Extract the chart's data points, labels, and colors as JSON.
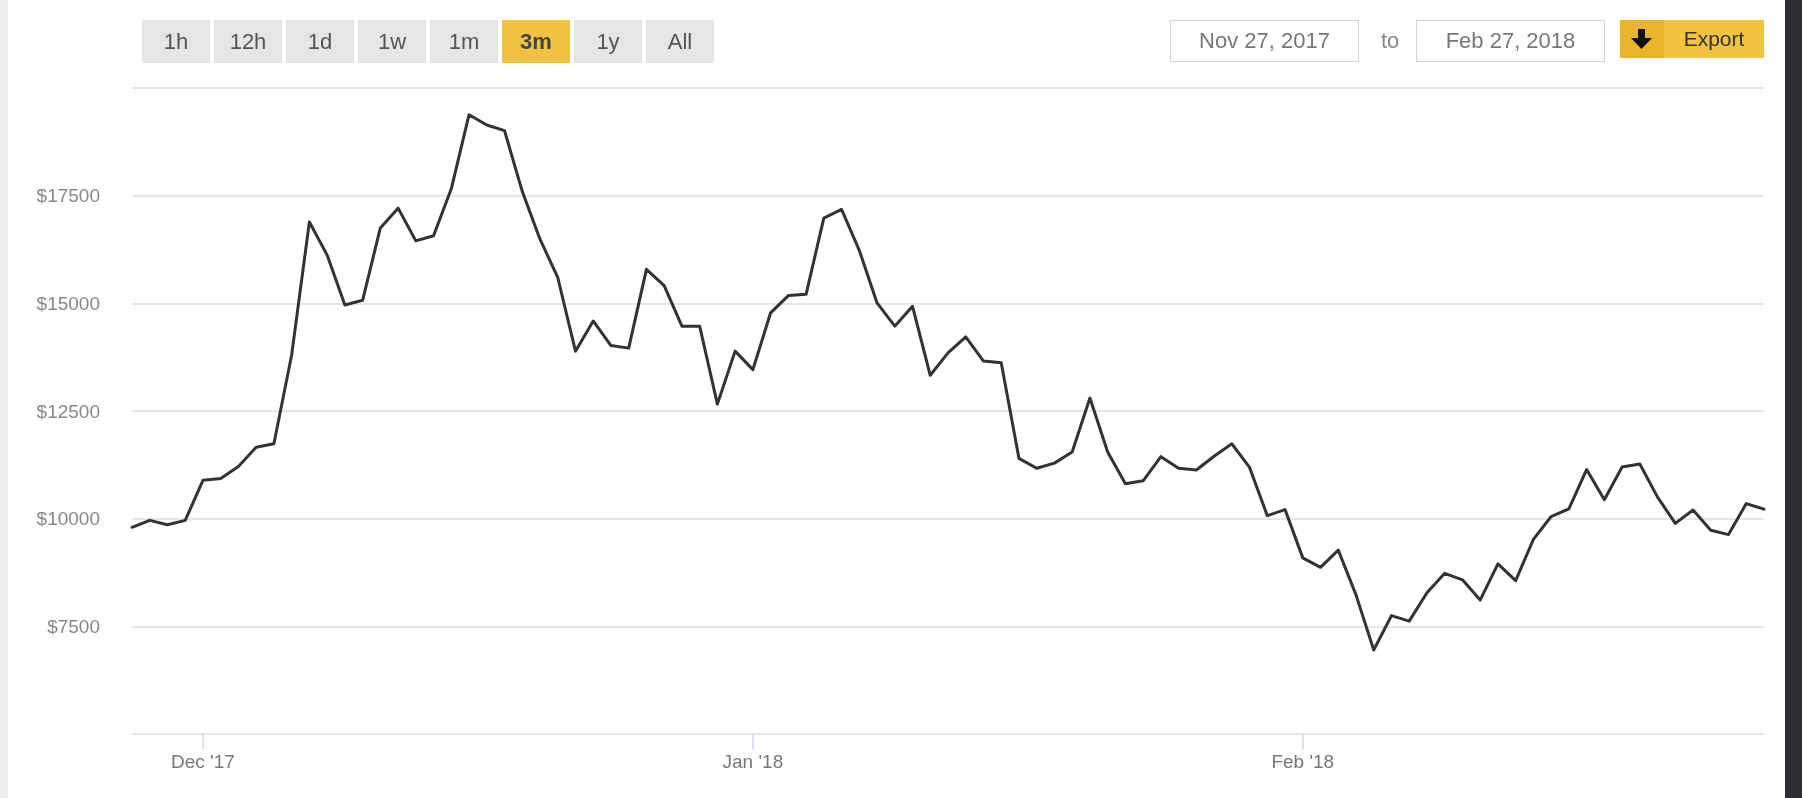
{
  "chart_data": {
    "type": "line",
    "color": "#333333",
    "marker": "none",
    "grid": "y",
    "xlim": [
      "2017-11-27",
      "2018-02-27"
    ],
    "xticks": [
      {
        "value": "2017-12-01",
        "label": "Dec '17"
      },
      {
        "value": "2018-01-01",
        "label": "Jan '18"
      },
      {
        "value": "2018-02-01",
        "label": "Feb '18"
      }
    ],
    "ylim": [
      5000,
      20000
    ],
    "yticks": [
      {
        "value": 7500,
        "label": "$7500"
      },
      {
        "value": 10000,
        "label": "$10000"
      },
      {
        "value": 12500,
        "label": "$12500"
      },
      {
        "value": 15000,
        "label": "$15000"
      },
      {
        "value": 17500,
        "label": "$17500"
      },
      {
        "value": 20000,
        "label": null
      }
    ],
    "annotations": [
      "1h",
      "12h",
      "1d",
      "1w",
      "1m",
      "3m",
      "1y",
      "All",
      "Nov 27, 2017",
      "to",
      "Feb 27, 2018",
      "Export"
    ],
    "x": [
      "2017-11-27",
      "2017-11-28",
      "2017-11-29",
      "2017-11-30",
      "2017-12-01",
      "2017-12-02",
      "2017-12-03",
      "2017-12-04",
      "2017-12-05",
      "2017-12-06",
      "2017-12-07",
      "2017-12-08",
      "2017-12-09",
      "2017-12-10",
      "2017-12-11",
      "2017-12-12",
      "2017-12-13",
      "2017-12-14",
      "2017-12-15",
      "2017-12-16",
      "2017-12-17",
      "2017-12-18",
      "2017-12-19",
      "2017-12-20",
      "2017-12-21",
      "2017-12-22",
      "2017-12-23",
      "2017-12-24",
      "2017-12-25",
      "2017-12-26",
      "2017-12-27",
      "2017-12-28",
      "2017-12-29",
      "2017-12-30",
      "2017-12-31",
      "2018-01-01",
      "2018-01-02",
      "2018-01-03",
      "2018-01-04",
      "2018-01-05",
      "2018-01-06",
      "2018-01-07",
      "2018-01-08",
      "2018-01-09",
      "2018-01-10",
      "2018-01-11",
      "2018-01-12",
      "2018-01-13",
      "2018-01-14",
      "2018-01-15",
      "2018-01-16",
      "2018-01-17",
      "2018-01-18",
      "2018-01-19",
      "2018-01-20",
      "2018-01-21",
      "2018-01-22",
      "2018-01-23",
      "2018-01-24",
      "2018-01-25",
      "2018-01-26",
      "2018-01-27",
      "2018-01-28",
      "2018-01-29",
      "2018-01-30",
      "2018-01-31",
      "2018-02-01",
      "2018-02-02",
      "2018-02-03",
      "2018-02-04",
      "2018-02-05",
      "2018-02-06",
      "2018-02-07",
      "2018-02-08",
      "2018-02-09",
      "2018-02-10",
      "2018-02-11",
      "2018-02-12",
      "2018-02-13",
      "2018-02-14",
      "2018-02-15",
      "2018-02-16",
      "2018-02-17",
      "2018-02-18",
      "2018-02-19",
      "2018-02-20",
      "2018-02-21",
      "2018-02-22",
      "2018-02-23",
      "2018-02-24",
      "2018-02-25",
      "2018-02-26",
      "2018-02-27"
    ],
    "values": [
      9800,
      9960,
      9860,
      9960,
      10890,
      10930,
      11210,
      11660,
      11740,
      13800,
      16890,
      16120,
      14960,
      15070,
      16750,
      17210,
      16450,
      16570,
      17660,
      19380,
      19140,
      19010,
      17600,
      16490,
      15600,
      13890,
      14590,
      14020,
      13960,
      15790,
      15410,
      14470,
      14470,
      12660,
      13890,
      13460,
      14780,
      15180,
      15210,
      16980,
      17180,
      16230,
      15010,
      14470,
      14930,
      13330,
      13850,
      14220,
      13660,
      13620,
      11400,
      11170,
      11290,
      11550,
      12800,
      11550,
      10810,
      10880,
      11440,
      11170,
      11130,
      11450,
      11740,
      11190,
      10070,
      10210,
      9090,
      8870,
      9270,
      8230,
      6950,
      7750,
      7620,
      8280,
      8730,
      8580,
      8110,
      8950,
      8560,
      9520,
      10050,
      10230,
      11140,
      10440,
      11200,
      11270,
      10500,
      9890,
      10200,
      9730,
      9630,
      10350,
      10220
    ]
  }
}
